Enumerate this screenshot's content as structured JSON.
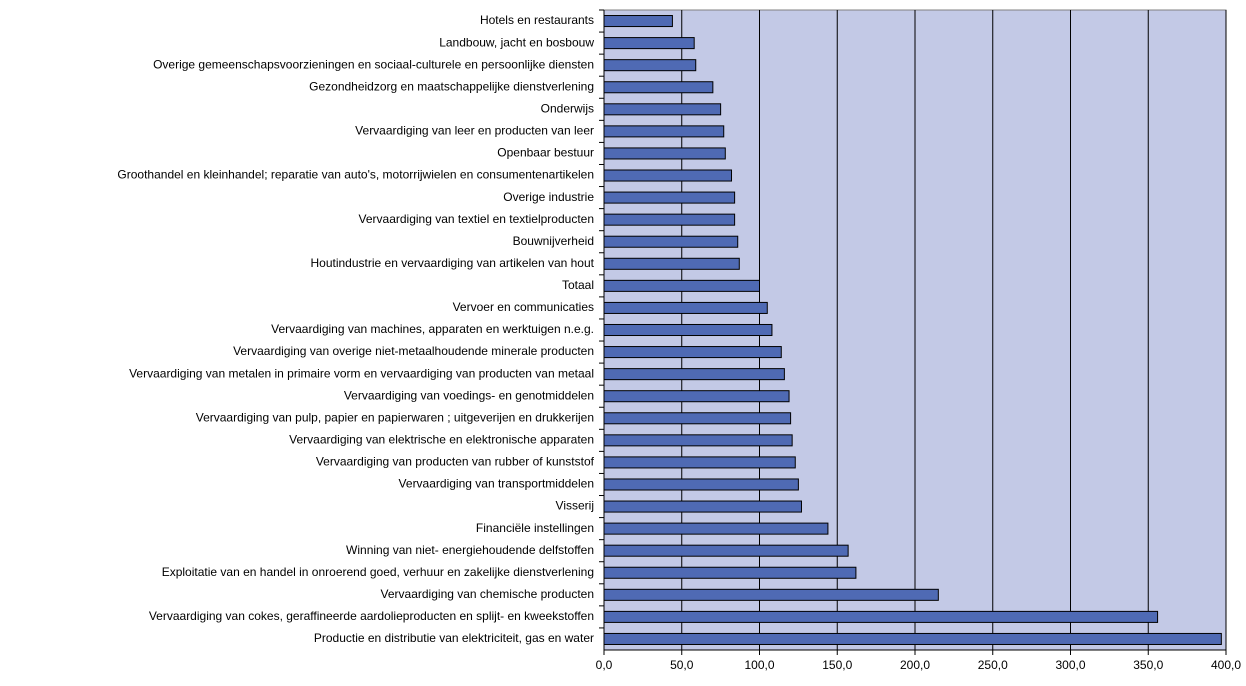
{
  "chart_data": {
    "type": "bar",
    "orientation": "horizontal",
    "categories": [
      "Hotels en restaurants",
      "Landbouw, jacht en bosbouw",
      "Overige gemeenschapsvoorzieningen en sociaal-culturele en persoonlijke diensten",
      "Gezondheidzorg en maatschappelijke dienstverlening",
      "Onderwijs",
      "Vervaardiging van leer en producten van leer",
      "Openbaar bestuur",
      "Groothandel en kleinhandel; reparatie van auto's, motorrijwielen en consumentenartikelen",
      "Overige industrie",
      "Vervaardiging van textiel en textielproducten",
      "Bouwnijverheid",
      "Houtindustrie en vervaardiging van artikelen van hout",
      "Totaal",
      "Vervoer en communicaties",
      "Vervaardiging van machines, apparaten en werktuigen n.e.g.",
      "Vervaardiging van overige niet-metaalhoudende minerale producten",
      "Vervaardiging van metalen in primaire vorm en vervaardiging van producten van metaal",
      "Vervaardiging van voedings- en genotmiddelen",
      "Vervaardiging van pulp, papier en papierwaren ; uitgeverijen en drukkerijen",
      "Vervaardiging van elektrische en elektronische apparaten",
      "Vervaardiging van producten van rubber of kunststof",
      "Vervaardiging van transportmiddelen",
      "Visserij",
      "Financiële instellingen",
      "Winning van niet- energiehoudende delfstoffen",
      "Exploitatie van en handel in onroerend goed, verhuur en zakelijke dienstverlening",
      "Vervaardiging van chemische producten",
      "Vervaardiging van cokes, geraffineerde aardolieproducten en splijt- en kweekstoffen",
      "Productie en distributie van elektriciteit, gas en water"
    ],
    "values": [
      44,
      58,
      59,
      70,
      75,
      77,
      78,
      82,
      84,
      84,
      86,
      87,
      100,
      105,
      108,
      114,
      116,
      119,
      120,
      121,
      123,
      125,
      127,
      144,
      157,
      162,
      215,
      356,
      397
    ],
    "color": "#4f6ab4",
    "background": "#c3c9e6",
    "grid": true,
    "xlim": [
      0,
      400
    ],
    "xticks": [
      {
        "value": 0,
        "label": "0,0"
      },
      {
        "value": 50,
        "label": "50,0"
      },
      {
        "value": 100,
        "label": "100,0"
      },
      {
        "value": 150,
        "label": "150,0"
      },
      {
        "value": 200,
        "label": "200,0"
      },
      {
        "value": 250,
        "label": "250,0"
      },
      {
        "value": 300,
        "label": "300,0"
      },
      {
        "value": 350,
        "label": "350,0"
      },
      {
        "value": 400,
        "label": "400,0"
      }
    ]
  }
}
